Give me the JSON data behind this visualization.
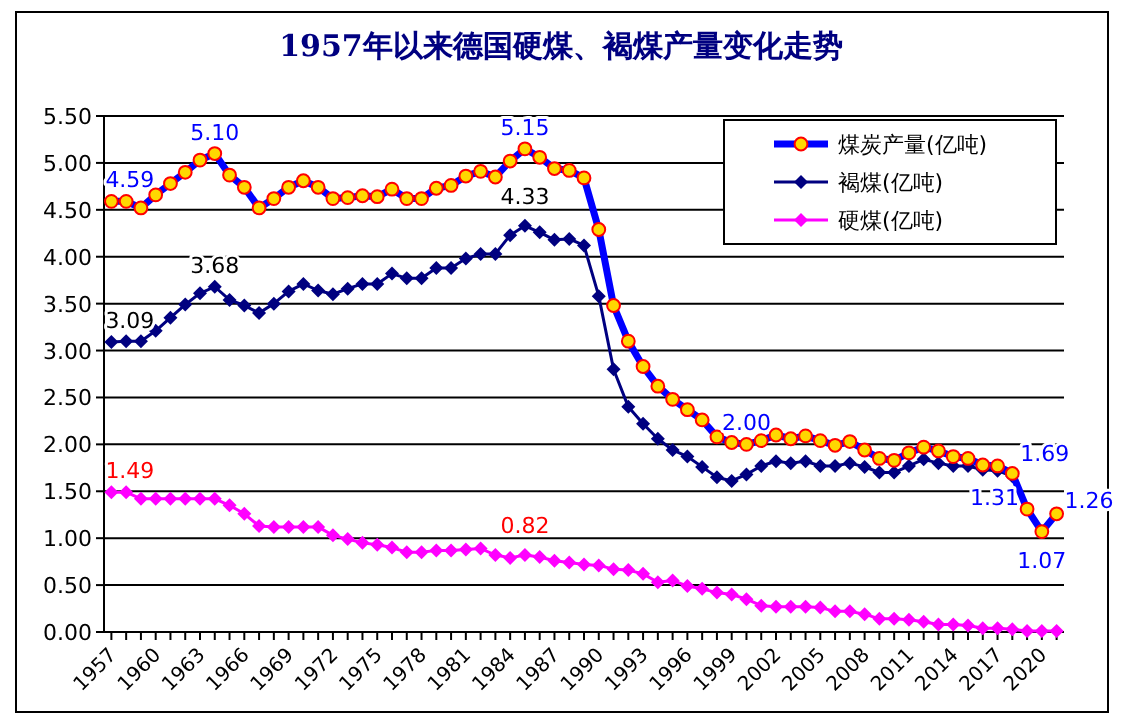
{
  "chart_data": {
    "type": "line",
    "title": "1957年以来德国硬煤、褐煤产量变化走势",
    "x": [
      1957,
      1958,
      1959,
      1960,
      1961,
      1962,
      1963,
      1964,
      1965,
      1966,
      1967,
      1968,
      1969,
      1970,
      1971,
      1972,
      1973,
      1974,
      1975,
      1976,
      1977,
      1978,
      1979,
      1980,
      1981,
      1982,
      1983,
      1984,
      1985,
      1986,
      1987,
      1988,
      1989,
      1990,
      1991,
      1992,
      1993,
      1994,
      1995,
      1996,
      1997,
      1998,
      1999,
      2000,
      2001,
      2002,
      2003,
      2004,
      2005,
      2006,
      2007,
      2008,
      2009,
      2010,
      2011,
      2012,
      2013,
      2014,
      2015,
      2016,
      2017,
      2018,
      2019,
      2020,
      2021
    ],
    "series": [
      {
        "name": "煤炭产量(亿吨)",
        "color": "#0000ff",
        "marker": "circle",
        "values": [
          4.59,
          4.59,
          4.52,
          4.66,
          4.78,
          4.9,
          5.03,
          5.1,
          4.87,
          4.74,
          4.52,
          4.62,
          4.74,
          4.81,
          4.74,
          4.62,
          4.63,
          4.65,
          4.64,
          4.72,
          4.62,
          4.62,
          4.73,
          4.76,
          4.86,
          4.91,
          4.85,
          5.02,
          5.15,
          5.06,
          4.94,
          4.92,
          4.84,
          4.29,
          3.48,
          3.1,
          2.83,
          2.62,
          2.48,
          2.37,
          2.26,
          2.08,
          2.02,
          2.0,
          2.04,
          2.1,
          2.06,
          2.09,
          2.04,
          1.99,
          2.03,
          1.94,
          1.85,
          1.83,
          1.91,
          1.97,
          1.93,
          1.87,
          1.85,
          1.78,
          1.77,
          1.69,
          1.31,
          1.07,
          1.26
        ]
      },
      {
        "name": "褐煤(亿吨)",
        "color": "#000080",
        "marker": "diamond",
        "values": [
          3.09,
          3.1,
          3.1,
          3.21,
          3.35,
          3.49,
          3.61,
          3.68,
          3.54,
          3.48,
          3.4,
          3.5,
          3.63,
          3.71,
          3.64,
          3.6,
          3.66,
          3.71,
          3.71,
          3.82,
          3.77,
          3.77,
          3.88,
          3.88,
          3.98,
          4.03,
          4.03,
          4.23,
          4.33,
          4.26,
          4.18,
          4.19,
          4.12,
          3.58,
          2.8,
          2.4,
          2.22,
          2.06,
          1.94,
          1.87,
          1.76,
          1.65,
          1.61,
          1.68,
          1.77,
          1.82,
          1.8,
          1.82,
          1.77,
          1.77,
          1.8,
          1.76,
          1.7,
          1.7,
          1.77,
          1.84,
          1.8,
          1.77,
          1.77,
          1.73,
          1.72,
          1.66,
          1.31,
          1.07,
          1.26
        ]
      },
      {
        "name": "硬煤(亿吨)",
        "color": "#ff00ff",
        "marker": "diamond",
        "values": [
          1.49,
          1.49,
          1.42,
          1.42,
          1.42,
          1.42,
          1.42,
          1.42,
          1.35,
          1.26,
          1.13,
          1.12,
          1.12,
          1.12,
          1.12,
          1.03,
          0.99,
          0.95,
          0.93,
          0.9,
          0.85,
          0.85,
          0.87,
          0.87,
          0.88,
          0.89,
          0.82,
          0.79,
          0.82,
          0.8,
          0.76,
          0.74,
          0.72,
          0.71,
          0.67,
          0.66,
          0.62,
          0.53,
          0.55,
          0.49,
          0.46,
          0.42,
          0.4,
          0.35,
          0.28,
          0.27,
          0.27,
          0.27,
          0.26,
          0.22,
          0.22,
          0.19,
          0.14,
          0.14,
          0.13,
          0.11,
          0.08,
          0.08,
          0.07,
          0.04,
          0.04,
          0.03,
          0.01,
          0.01,
          0.01
        ]
      }
    ],
    "annotations": [
      {
        "text": "4.59",
        "x": 1957,
        "y": 4.59
      },
      {
        "text": "5.10",
        "x": 1964,
        "y": 5.1
      },
      {
        "text": "5.15",
        "x": 1985,
        "y": 5.15
      },
      {
        "text": "2.00",
        "x": 2000,
        "y": 2.0
      },
      {
        "text": "1.69",
        "x": 2018,
        "y": 1.69
      },
      {
        "text": "1.07",
        "x": 2020,
        "y": 1.07
      },
      {
        "text": "1.26",
        "x": 2021,
        "y": 1.26
      },
      {
        "text": "3.09",
        "x": 1957,
        "y": 3.09
      },
      {
        "text": "3.68",
        "x": 1964,
        "y": 3.68
      },
      {
        "text": "4.33",
        "x": 1985,
        "y": 4.33
      },
      {
        "text": "1.31",
        "x": 2019,
        "y": 1.31
      },
      {
        "text": "1.49",
        "x": 1957,
        "y": 1.49
      },
      {
        "text": "0.82",
        "x": 1985,
        "y": 0.82
      }
    ],
    "xlim": [
      1956.5,
      2021.5
    ],
    "xticks": [
      1957,
      {
        "value": 1958,
        "label": null
      },
      {
        "value": 1959,
        "label": null
      },
      1960,
      {
        "value": 1961,
        "label": null
      },
      {
        "value": 1962,
        "label": null
      },
      1963,
      {
        "value": 1964,
        "label": null
      },
      {
        "value": 1965,
        "label": null
      },
      1966,
      {
        "value": 1967,
        "label": null
      },
      {
        "value": 1968,
        "label": null
      },
      1969,
      {
        "value": 1970,
        "label": null
      },
      {
        "value": 1971,
        "label": null
      },
      1972,
      {
        "value": 1973,
        "label": null
      },
      {
        "value": 1974,
        "label": null
      },
      1975,
      {
        "value": 1976,
        "label": null
      },
      {
        "value": 1977,
        "label": null
      },
      1978,
      {
        "value": 1979,
        "label": null
      },
      {
        "value": 1980,
        "label": null
      },
      1981,
      {
        "value": 1982,
        "label": null
      },
      {
        "value": 1983,
        "label": null
      },
      1984,
      {
        "value": 1985,
        "label": null
      },
      {
        "value": 1986,
        "label": null
      },
      1987,
      {
        "value": 1988,
        "label": null
      },
      {
        "value": 1989,
        "label": null
      },
      1990,
      {
        "value": 1991,
        "label": null
      },
      {
        "value": 1992,
        "label": null
      },
      1993,
      {
        "value": 1994,
        "label": null
      },
      {
        "value": 1995,
        "label": null
      },
      1996,
      {
        "value": 1997,
        "label": null
      },
      {
        "value": 1998,
        "label": null
      },
      1999,
      {
        "value": 2000,
        "label": null
      },
      {
        "value": 2001,
        "label": null
      },
      2002,
      {
        "value": 2003,
        "label": null
      },
      {
        "value": 2004,
        "label": null
      },
      2005,
      {
        "value": 2006,
        "label": null
      },
      {
        "value": 2007,
        "label": null
      },
      2008,
      {
        "value": 2009,
        "label": null
      },
      {
        "value": 2010,
        "label": null
      },
      2011,
      {
        "value": 2012,
        "label": null
      },
      {
        "value": 2013,
        "label": null
      },
      2014,
      {
        "value": 2015,
        "label": null
      },
      {
        "value": 2016,
        "label": null
      },
      2017,
      {
        "value": 2018,
        "label": null
      },
      {
        "value": 2019,
        "label": null
      },
      2020,
      {
        "value": 2021,
        "label": null
      }
    ],
    "ylim": [
      0,
      5.5
    ],
    "yticks": [
      {
        "value": 0,
        "label": "0.00"
      },
      {
        "value": 0.5,
        "label": "0.50"
      },
      {
        "value": 1,
        "label": "1.00"
      },
      {
        "value": 1.5,
        "label": "1.50"
      },
      {
        "value": 2,
        "label": "2.00"
      },
      {
        "value": 2.5,
        "label": "2.50"
      },
      {
        "value": 3,
        "label": "3.00"
      },
      {
        "value": 3.5,
        "label": "3.50"
      },
      {
        "value": 4,
        "label": "4.00"
      },
      {
        "value": 4.5,
        "label": "4.50"
      },
      {
        "value": 5,
        "label": "5.00"
      },
      {
        "value": 5.5,
        "label": "5.50"
      }
    ],
    "grid": "y",
    "legend": "top right",
    "line_style": "solid"
  }
}
